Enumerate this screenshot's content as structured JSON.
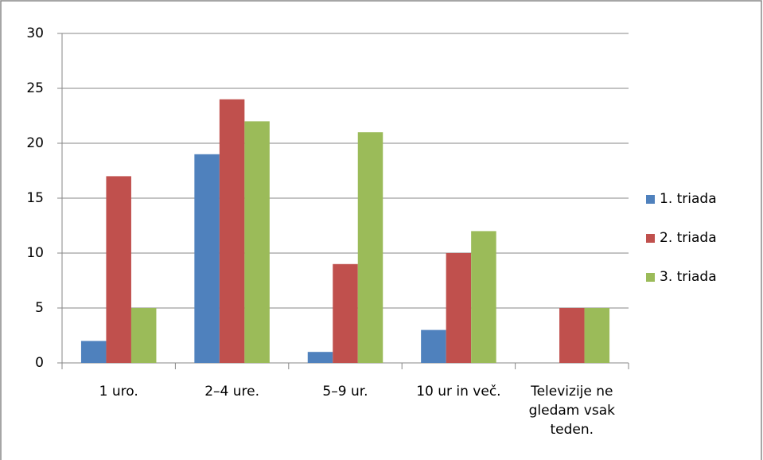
{
  "chart_data": {
    "type": "bar",
    "categories": [
      "1 uro.",
      "2–4 ure.",
      "5–9 ur.",
      "10 ur in več.",
      "Televizije ne gledam vsak teden."
    ],
    "series": [
      {
        "name": "1. triada",
        "color": "#4f81bd",
        "values": [
          2,
          19,
          1,
          3,
          0
        ]
      },
      {
        "name": "2. triada",
        "color": "#c0504d",
        "values": [
          17,
          24,
          9,
          10,
          5
        ]
      },
      {
        "name": "3. triada",
        "color": "#9bbb59",
        "values": [
          5,
          22,
          21,
          12,
          5
        ]
      }
    ],
    "ylim": [
      0,
      30
    ],
    "yticks": [
      0,
      5,
      10,
      15,
      20,
      25,
      30
    ],
    "grid": true,
    "legend": "right"
  }
}
